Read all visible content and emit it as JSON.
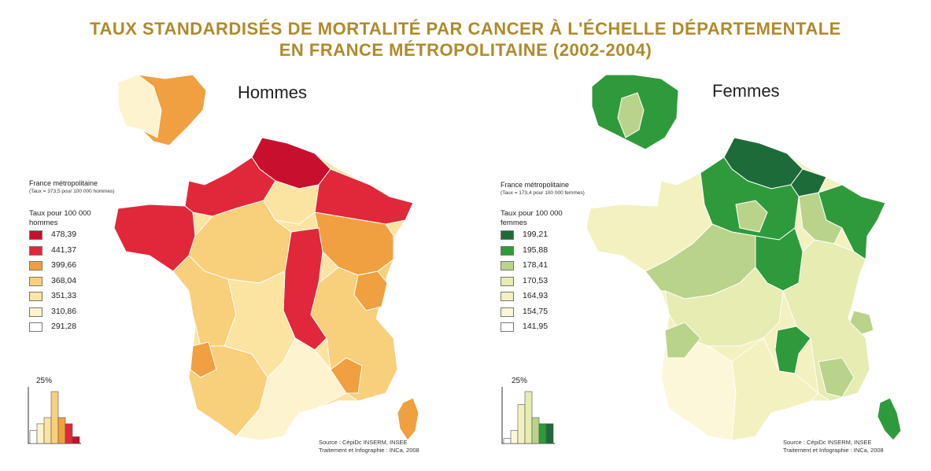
{
  "title_line1": "TAUX STANDARDISÉS DE MORTALITÉ PAR CANCER À L'ÉCHELLE DÉPARTEMENTALE",
  "title_line2": "EN FRANCE MÉTROPOLITAINE (2002-2004)",
  "maps": {
    "hommes": {
      "title": "Hommes",
      "legend_heading": "France métropolitaine",
      "legend_sub": "(Taux = 373,5 pour 100 000 hommes)",
      "legend_taux": "Taux pour 100 000 hommes",
      "legend": [
        {
          "label": "478,39",
          "color": "#c8102e"
        },
        {
          "label": "441,37",
          "color": "#e0283a"
        },
        {
          "label": "399,66",
          "color": "#f0a040"
        },
        {
          "label": "368,04",
          "color": "#f8cf7a"
        },
        {
          "label": "351,33",
          "color": "#fbe3a2"
        },
        {
          "label": "310,86",
          "color": "#fdf3cf"
        },
        {
          "label": "291,28",
          "color": "#ffffff"
        }
      ],
      "histogram_label": "25%",
      "histogram": [
        0.25,
        0.38,
        0.5,
        1.0,
        0.5,
        0.38,
        0.13
      ],
      "source_line1": "Source : CépiDc INSERM, INSEE",
      "source_line2": "Traitement et Infographie : INCa, 2008"
    },
    "femmes": {
      "title": "Femmes",
      "legend_heading": "France métropolitaine",
      "legend_sub": "(Taux = 173,4 pour 100 000 femmes)",
      "legend_taux": "Taux pour 100 000 femmes",
      "legend": [
        {
          "label": "199,21",
          "color": "#1e6b3a"
        },
        {
          "label": "195,88",
          "color": "#2e9a3c"
        },
        {
          "label": "178,41",
          "color": "#b9d38a"
        },
        {
          "label": "170,53",
          "color": "#e6ecb2"
        },
        {
          "label": "164,93",
          "color": "#f3f1c0"
        },
        {
          "label": "154,75",
          "color": "#fbf7d8"
        },
        {
          "label": "141,95",
          "color": "#ffffff"
        }
      ],
      "histogram_label": "25%",
      "histogram": [
        0.1,
        0.25,
        0.75,
        1.0,
        0.5,
        0.38,
        0.38
      ],
      "source_line1": "Source : CépiDc INSERM, INSEE",
      "source_line2": "Traitement et Infographie : INCa, 2008"
    }
  }
}
